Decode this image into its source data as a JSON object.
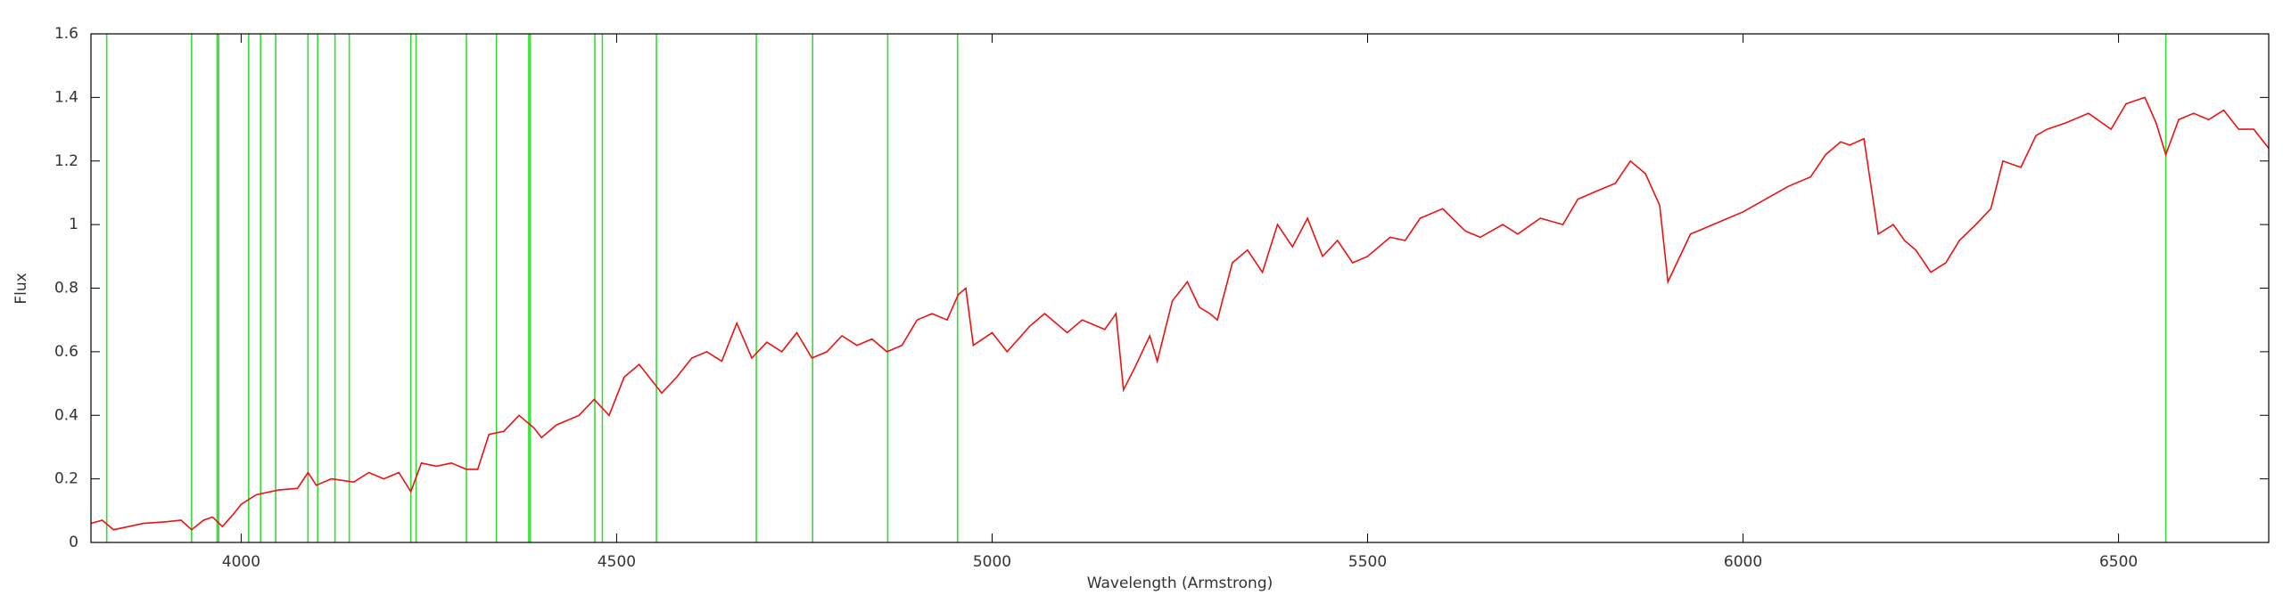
{
  "chart_data": {
    "type": "line",
    "xlabel": "Wavelength (Armstrong)",
    "ylabel": "Flux",
    "xlim": [
      3800,
      6700
    ],
    "ylim": [
      0,
      1.6
    ],
    "xticks": [
      4000,
      4500,
      5000,
      5500,
      6000,
      6500
    ],
    "yticks": [
      0,
      0.2,
      0.4,
      0.6,
      0.8,
      1,
      1.2,
      1.4,
      1.6
    ],
    "vlines": {
      "color": "#33dd33",
      "values": [
        3821,
        3934,
        3968,
        3970,
        4010,
        4026,
        4046,
        4089,
        4102,
        4125,
        4144,
        4226,
        4233,
        4300,
        4340,
        4383,
        4385,
        4471,
        4481,
        4553,
        4686,
        4761,
        4861,
        4954,
        6563
      ]
    },
    "series": [
      {
        "color": "#ee1111",
        "x": [
          3800,
          3815,
          3830,
          3850,
          3870,
          3900,
          3920,
          3934,
          3950,
          3962,
          3975,
          3990,
          4000,
          4020,
          4050,
          4075,
          4089,
          4100,
          4120,
          4150,
          4170,
          4190,
          4210,
          4226,
          4240,
          4260,
          4280,
          4300,
          4315,
          4330,
          4350,
          4370,
          4390,
          4400,
          4420,
          4450,
          4470,
          4490,
          4510,
          4530,
          4550,
          4560,
          4580,
          4600,
          4620,
          4640,
          4660,
          4680,
          4700,
          4720,
          4740,
          4760,
          4780,
          4800,
          4820,
          4840,
          4860,
          4880,
          4900,
          4920,
          4940,
          4955,
          4965,
          4975,
          5000,
          5020,
          5050,
          5070,
          5100,
          5120,
          5150,
          5165,
          5175,
          5190,
          5210,
          5220,
          5240,
          5260,
          5276,
          5290,
          5300,
          5320,
          5340,
          5360,
          5380,
          5400,
          5420,
          5440,
          5460,
          5480,
          5500,
          5530,
          5550,
          5570,
          5600,
          5630,
          5650,
          5680,
          5700,
          5730,
          5760,
          5780,
          5800,
          5830,
          5850,
          5870,
          5889,
          5900,
          5930,
          5960,
          6000,
          6030,
          6060,
          6090,
          6110,
          6130,
          6142,
          6161,
          6180,
          6200,
          6215,
          6230,
          6250,
          6270,
          6288,
          6310,
          6330,
          6346,
          6370,
          6390,
          6405,
          6430,
          6460,
          6490,
          6510,
          6535,
          6550,
          6563,
          6580,
          6600,
          6620,
          6640,
          6660,
          6680,
          6700
        ],
        "values": [
          0.06,
          0.07,
          0.04,
          0.05,
          0.06,
          0.065,
          0.07,
          0.04,
          0.07,
          0.08,
          0.05,
          0.09,
          0.12,
          0.15,
          0.165,
          0.17,
          0.22,
          0.18,
          0.2,
          0.19,
          0.22,
          0.2,
          0.22,
          0.16,
          0.25,
          0.24,
          0.25,
          0.23,
          0.23,
          0.34,
          0.35,
          0.4,
          0.36,
          0.33,
          0.37,
          0.4,
          0.45,
          0.4,
          0.52,
          0.56,
          0.5,
          0.47,
          0.52,
          0.58,
          0.6,
          0.57,
          0.69,
          0.58,
          0.63,
          0.6,
          0.66,
          0.58,
          0.6,
          0.65,
          0.62,
          0.64,
          0.6,
          0.62,
          0.7,
          0.72,
          0.7,
          0.78,
          0.8,
          0.62,
          0.66,
          0.6,
          0.68,
          0.72,
          0.66,
          0.7,
          0.67,
          0.72,
          0.48,
          0.55,
          0.65,
          0.57,
          0.76,
          0.82,
          0.74,
          0.72,
          0.7,
          0.88,
          0.92,
          0.85,
          1.0,
          0.93,
          1.02,
          0.9,
          0.95,
          0.88,
          0.9,
          0.96,
          0.95,
          1.02,
          1.05,
          0.98,
          0.96,
          1.0,
          0.97,
          1.02,
          1.0,
          1.08,
          1.1,
          1.13,
          1.2,
          1.16,
          1.06,
          0.82,
          0.97,
          1.0,
          1.04,
          1.08,
          1.12,
          1.15,
          1.22,
          1.26,
          1.25,
          1.27,
          0.97,
          1.0,
          0.95,
          0.92,
          0.85,
          0.88,
          0.95,
          1.0,
          1.05,
          1.2,
          1.18,
          1.28,
          1.3,
          1.32,
          1.35,
          1.3,
          1.38,
          1.4,
          1.32,
          1.22,
          1.33,
          1.35,
          1.33,
          1.36,
          1.3,
          1.3,
          1.24
        ]
      }
    ]
  }
}
